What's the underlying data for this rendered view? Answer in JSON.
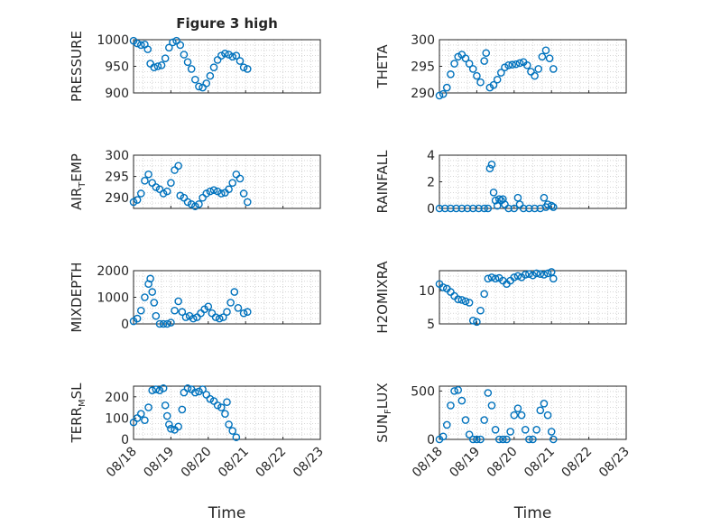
{
  "title": "Figure 3 high",
  "xlabel": "Time",
  "colors": {
    "marker": "#0072BD",
    "axis": "#262626",
    "grid": "#bdbdbd"
  },
  "x_ticks": [
    "08/18",
    "08/19",
    "08/20",
    "08/21",
    "08/22",
    "08/23"
  ],
  "chart_data": [
    {
      "type": "scatter",
      "ylabel": "PRESSURE",
      "ylim": [
        900,
        1000
      ],
      "yticks": [
        900,
        950,
        1000
      ],
      "x_ticks": [
        "08/18",
        "08/19",
        "08/20",
        "08/21",
        "08/22",
        "08/23"
      ],
      "xlim": [
        0,
        5
      ],
      "grid": true,
      "points": [
        [
          0.0,
          998
        ],
        [
          0.1,
          993
        ],
        [
          0.2,
          990
        ],
        [
          0.3,
          991
        ],
        [
          0.38,
          982
        ],
        [
          0.45,
          955
        ],
        [
          0.55,
          948
        ],
        [
          0.65,
          950
        ],
        [
          0.75,
          952
        ],
        [
          0.85,
          965
        ],
        [
          0.95,
          985
        ],
        [
          1.05,
          995
        ],
        [
          1.15,
          998
        ],
        [
          1.25,
          990
        ],
        [
          1.35,
          972
        ],
        [
          1.45,
          958
        ],
        [
          1.55,
          945
        ],
        [
          1.65,
          925
        ],
        [
          1.75,
          912
        ],
        [
          1.85,
          910
        ],
        [
          1.95,
          918
        ],
        [
          2.05,
          932
        ],
        [
          2.15,
          948
        ],
        [
          2.25,
          962
        ],
        [
          2.35,
          970
        ],
        [
          2.45,
          974
        ],
        [
          2.55,
          972
        ],
        [
          2.65,
          968
        ],
        [
          2.75,
          970
        ],
        [
          2.85,
          960
        ],
        [
          2.95,
          948
        ],
        [
          3.05,
          945
        ]
      ]
    },
    {
      "type": "scatter",
      "ylabel": "THETA",
      "ylim": [
        290,
        300
      ],
      "yticks": [
        290,
        295,
        300
      ],
      "x_ticks": [
        "08/18",
        "08/19",
        "08/20",
        "08/21",
        "08/22",
        "08/23"
      ],
      "xlim": [
        0,
        5
      ],
      "grid": true,
      "points": [
        [
          0.0,
          289.5
        ],
        [
          0.1,
          289.8
        ],
        [
          0.2,
          291.0
        ],
        [
          0.3,
          293.5
        ],
        [
          0.4,
          295.5
        ],
        [
          0.5,
          296.8
        ],
        [
          0.6,
          297.2
        ],
        [
          0.7,
          296.5
        ],
        [
          0.8,
          295.5
        ],
        [
          0.9,
          294.5
        ],
        [
          1.0,
          293.2
        ],
        [
          1.1,
          292.0
        ],
        [
          1.2,
          296.0
        ],
        [
          1.25,
          297.5
        ],
        [
          1.35,
          291.0
        ],
        [
          1.45,
          291.5
        ],
        [
          1.55,
          292.5
        ],
        [
          1.65,
          293.8
        ],
        [
          1.75,
          294.8
        ],
        [
          1.85,
          295.2
        ],
        [
          1.95,
          295.3
        ],
        [
          2.05,
          295.4
        ],
        [
          2.15,
          295.6
        ],
        [
          2.25,
          295.8
        ],
        [
          2.35,
          295.2
        ],
        [
          2.45,
          294.0
        ],
        [
          2.55,
          293.2
        ],
        [
          2.65,
          294.5
        ],
        [
          2.75,
          296.8
        ],
        [
          2.85,
          298.0
        ],
        [
          2.95,
          296.5
        ],
        [
          3.05,
          294.5
        ]
      ]
    },
    {
      "type": "scatter",
      "ylabel": "AIR",
      "ylabel_sub": "T",
      "ylabel_rest": "EMP",
      "ylim": [
        287.5,
        300
      ],
      "yticks": [
        290,
        295,
        300
      ],
      "x_ticks": [
        "08/18",
        "08/19",
        "08/20",
        "08/21",
        "08/22",
        "08/23"
      ],
      "xlim": [
        0,
        5
      ],
      "grid": true,
      "points": [
        [
          0.0,
          289.0
        ],
        [
          0.1,
          289.5
        ],
        [
          0.2,
          291.0
        ],
        [
          0.3,
          294.0
        ],
        [
          0.4,
          295.5
        ],
        [
          0.5,
          293.5
        ],
        [
          0.6,
          292.5
        ],
        [
          0.7,
          292.0
        ],
        [
          0.8,
          291.0
        ],
        [
          0.9,
          291.5
        ],
        [
          1.0,
          293.5
        ],
        [
          1.1,
          296.5
        ],
        [
          1.2,
          297.5
        ],
        [
          1.25,
          290.5
        ],
        [
          1.35,
          290.0
        ],
        [
          1.45,
          289.0
        ],
        [
          1.55,
          288.5
        ],
        [
          1.65,
          288.0
        ],
        [
          1.75,
          288.5
        ],
        [
          1.85,
          290.0
        ],
        [
          1.95,
          291.0
        ],
        [
          2.05,
          291.5
        ],
        [
          2.15,
          291.8
        ],
        [
          2.25,
          291.5
        ],
        [
          2.35,
          291.0
        ],
        [
          2.45,
          291.2
        ],
        [
          2.55,
          292.0
        ],
        [
          2.65,
          293.5
        ],
        [
          2.75,
          295.5
        ],
        [
          2.85,
          294.5
        ],
        [
          2.95,
          291.0
        ],
        [
          3.05,
          289.0
        ]
      ]
    },
    {
      "type": "scatter",
      "ylabel": "RAINFALL",
      "ylim": [
        0,
        4
      ],
      "yticks": [
        0,
        2,
        4
      ],
      "x_ticks": [
        "08/18",
        "08/19",
        "08/20",
        "08/21",
        "08/22",
        "08/23"
      ],
      "xlim": [
        0,
        5
      ],
      "grid": true,
      "points": [
        [
          0.0,
          0
        ],
        [
          0.15,
          0
        ],
        [
          0.3,
          0
        ],
        [
          0.45,
          0
        ],
        [
          0.6,
          0
        ],
        [
          0.75,
          0
        ],
        [
          0.9,
          0
        ],
        [
          1.05,
          0
        ],
        [
          1.2,
          0
        ],
        [
          1.3,
          0
        ],
        [
          1.35,
          3.0
        ],
        [
          1.4,
          3.3
        ],
        [
          1.45,
          1.2
        ],
        [
          1.5,
          0.6
        ],
        [
          1.55,
          0.2
        ],
        [
          1.6,
          0.7
        ],
        [
          1.65,
          0.6
        ],
        [
          1.7,
          0.7
        ],
        [
          1.75,
          0.3
        ],
        [
          1.85,
          0
        ],
        [
          2.0,
          0
        ],
        [
          2.1,
          0.8
        ],
        [
          2.15,
          0.3
        ],
        [
          2.25,
          0
        ],
        [
          2.4,
          0
        ],
        [
          2.55,
          0
        ],
        [
          2.7,
          0
        ],
        [
          2.8,
          0.8
        ],
        [
          2.85,
          0.1
        ],
        [
          2.9,
          0.3
        ],
        [
          3.0,
          0.2
        ],
        [
          3.05,
          0.1
        ]
      ]
    },
    {
      "type": "scatter",
      "ylabel": "MIXDEPTH",
      "ylim": [
        0,
        2000
      ],
      "yticks": [
        0,
        1000,
        2000
      ],
      "x_ticks": [
        "08/18",
        "08/19",
        "08/20",
        "08/21",
        "08/22",
        "08/23"
      ],
      "xlim": [
        0,
        5
      ],
      "grid": true,
      "points": [
        [
          0.0,
          100
        ],
        [
          0.1,
          200
        ],
        [
          0.2,
          500
        ],
        [
          0.3,
          1000
        ],
        [
          0.4,
          1500
        ],
        [
          0.45,
          1700
        ],
        [
          0.5,
          1200
        ],
        [
          0.55,
          800
        ],
        [
          0.6,
          300
        ],
        [
          0.7,
          0
        ],
        [
          0.8,
          0
        ],
        [
          0.9,
          0
        ],
        [
          1.0,
          50
        ],
        [
          1.1,
          500
        ],
        [
          1.2,
          850
        ],
        [
          1.3,
          450
        ],
        [
          1.4,
          250
        ],
        [
          1.5,
          300
        ],
        [
          1.6,
          200
        ],
        [
          1.7,
          250
        ],
        [
          1.8,
          400
        ],
        [
          1.9,
          550
        ],
        [
          2.0,
          650
        ],
        [
          2.1,
          400
        ],
        [
          2.2,
          250
        ],
        [
          2.3,
          200
        ],
        [
          2.4,
          250
        ],
        [
          2.5,
          450
        ],
        [
          2.6,
          800
        ],
        [
          2.7,
          1200
        ],
        [
          2.8,
          600
        ],
        [
          2.95,
          400
        ],
        [
          3.05,
          450
        ]
      ]
    },
    {
      "type": "scatter",
      "ylabel": "H2OMIXRA",
      "ylim": [
        5,
        13
      ],
      "yticks": [
        5,
        10
      ],
      "x_ticks": [
        "08/18",
        "08/19",
        "08/20",
        "08/21",
        "08/22",
        "08/23"
      ],
      "xlim": [
        0,
        5
      ],
      "grid": true,
      "points": [
        [
          0.0,
          11.0
        ],
        [
          0.1,
          10.5
        ],
        [
          0.2,
          10.3
        ],
        [
          0.3,
          9.8
        ],
        [
          0.4,
          9.2
        ],
        [
          0.5,
          8.7
        ],
        [
          0.6,
          8.6
        ],
        [
          0.7,
          8.4
        ],
        [
          0.8,
          8.2
        ],
        [
          0.9,
          5.5
        ],
        [
          1.0,
          5.3
        ],
        [
          1.1,
          7.0
        ],
        [
          1.2,
          9.5
        ],
        [
          1.3,
          11.8
        ],
        [
          1.4,
          12.0
        ],
        [
          1.5,
          11.8
        ],
        [
          1.6,
          11.9
        ],
        [
          1.7,
          11.5
        ],
        [
          1.8,
          11.0
        ],
        [
          1.9,
          11.5
        ],
        [
          2.0,
          12.0
        ],
        [
          2.1,
          12.2
        ],
        [
          2.2,
          12.0
        ],
        [
          2.3,
          12.4
        ],
        [
          2.4,
          12.5
        ],
        [
          2.5,
          12.3
        ],
        [
          2.6,
          12.6
        ],
        [
          2.7,
          12.5
        ],
        [
          2.8,
          12.4
        ],
        [
          2.9,
          12.6
        ],
        [
          3.0,
          12.8
        ],
        [
          3.05,
          11.8
        ]
      ]
    },
    {
      "type": "scatter",
      "ylabel": "TERR",
      "ylabel_sub": "M",
      "ylabel_rest": "SL",
      "ylim": [
        0,
        250
      ],
      "yticks": [
        0,
        100,
        200
      ],
      "x_ticks": [
        "08/18",
        "08/19",
        "08/20",
        "08/21",
        "08/22",
        "08/23"
      ],
      "xlim": [
        0,
        5
      ],
      "grid": true,
      "points": [
        [
          0.0,
          80
        ],
        [
          0.1,
          100
        ],
        [
          0.2,
          120
        ],
        [
          0.3,
          90
        ],
        [
          0.4,
          150
        ],
        [
          0.5,
          230
        ],
        [
          0.6,
          235
        ],
        [
          0.7,
          230
        ],
        [
          0.8,
          240
        ],
        [
          0.85,
          160
        ],
        [
          0.9,
          110
        ],
        [
          0.95,
          70
        ],
        [
          1.0,
          50
        ],
        [
          1.1,
          45
        ],
        [
          1.2,
          60
        ],
        [
          1.3,
          140
        ],
        [
          1.35,
          220
        ],
        [
          1.45,
          240
        ],
        [
          1.55,
          235
        ],
        [
          1.65,
          220
        ],
        [
          1.75,
          225
        ],
        [
          1.85,
          235
        ],
        [
          1.95,
          210
        ],
        [
          2.05,
          190
        ],
        [
          2.15,
          180
        ],
        [
          2.25,
          160
        ],
        [
          2.35,
          150
        ],
        [
          2.45,
          120
        ],
        [
          2.55,
          70
        ],
        [
          2.65,
          40
        ],
        [
          2.75,
          10
        ],
        [
          2.5,
          175
        ]
      ]
    },
    {
      "type": "scatter",
      "ylabel": "SUN",
      "ylabel_sub": "F",
      "ylabel_rest": "LUX",
      "ylim": [
        0,
        550
      ],
      "yticks": [
        0,
        500
      ],
      "x_ticks": [
        "08/18",
        "08/19",
        "08/20",
        "08/21",
        "08/22",
        "08/23"
      ],
      "xlim": [
        0,
        5
      ],
      "grid": true,
      "points": [
        [
          0.0,
          0
        ],
        [
          0.1,
          30
        ],
        [
          0.2,
          150
        ],
        [
          0.3,
          350
        ],
        [
          0.4,
          500
        ],
        [
          0.5,
          510
        ],
        [
          0.6,
          400
        ],
        [
          0.7,
          200
        ],
        [
          0.8,
          50
        ],
        [
          0.9,
          0
        ],
        [
          1.0,
          0
        ],
        [
          1.1,
          0
        ],
        [
          1.2,
          200
        ],
        [
          1.3,
          480
        ],
        [
          1.4,
          350
        ],
        [
          1.5,
          100
        ],
        [
          1.6,
          0
        ],
        [
          1.7,
          0
        ],
        [
          1.8,
          0
        ],
        [
          1.9,
          80
        ],
        [
          2.0,
          250
        ],
        [
          2.1,
          320
        ],
        [
          2.2,
          250
        ],
        [
          2.3,
          100
        ],
        [
          2.4,
          0
        ],
        [
          2.5,
          0
        ],
        [
          2.6,
          100
        ],
        [
          2.7,
          300
        ],
        [
          2.8,
          370
        ],
        [
          2.9,
          250
        ],
        [
          3.0,
          80
        ],
        [
          3.05,
          0
        ]
      ]
    }
  ]
}
